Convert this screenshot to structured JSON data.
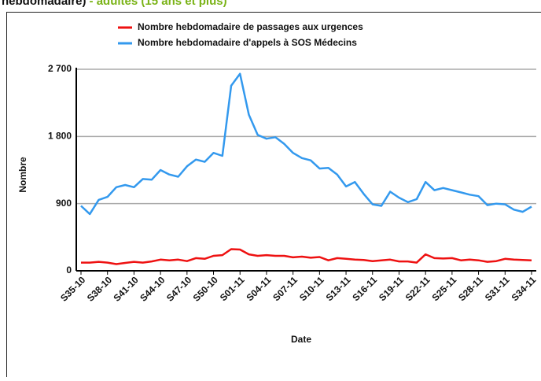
{
  "chart_data": {
    "type": "line",
    "title": "hebdomadaire)",
    "subtitle": "- adultes (15 ans et plus)",
    "x_label": "Date",
    "y_label": "Nombre",
    "categories": [
      "S35-10",
      null,
      null,
      "S38-10",
      null,
      null,
      "S41-10",
      null,
      null,
      "S44-10",
      null,
      null,
      "S47-10",
      null,
      null,
      "S50-10",
      null,
      null,
      "S01-11",
      null,
      null,
      "S04-11",
      null,
      null,
      "S07-11",
      null,
      null,
      "S10-11",
      null,
      null,
      "S13-11",
      null,
      null,
      "S16-11",
      null,
      null,
      "S19-11",
      null,
      null,
      "S22-11",
      null,
      null,
      "S25-11",
      null,
      null,
      "S28-11",
      null,
      null,
      "S31-11",
      null,
      null,
      "S34-11"
    ],
    "series": [
      {
        "name": "Nombre hebdomadaire de passages aux urgences",
        "color": "#ee1111",
        "values": [
          110,
          110,
          120,
          110,
          90,
          105,
          120,
          110,
          125,
          150,
          140,
          150,
          130,
          170,
          160,
          200,
          210,
          290,
          285,
          220,
          200,
          210,
          200,
          200,
          180,
          190,
          175,
          185,
          140,
          170,
          160,
          150,
          145,
          130,
          140,
          150,
          125,
          125,
          110,
          220,
          170,
          165,
          170,
          140,
          150,
          140,
          120,
          130,
          160,
          150,
          145,
          140
        ]
      },
      {
        "name": "Nombre hebdomadaire d'appels à SOS Médecins",
        "color": "#3399ee",
        "values": [
          870,
          760,
          950,
          990,
          1120,
          1150,
          1120,
          1230,
          1220,
          1350,
          1290,
          1260,
          1400,
          1490,
          1460,
          1580,
          1540,
          2480,
          2640,
          2090,
          1820,
          1770,
          1790,
          1700,
          1580,
          1510,
          1480,
          1370,
          1380,
          1290,
          1130,
          1190,
          1030,
          890,
          870,
          1060,
          980,
          920,
          960,
          1190,
          1080,
          1110,
          1080,
          1050,
          1020,
          1000,
          880,
          900,
          890,
          820,
          790,
          860
        ]
      }
    ],
    "ylim": [
      0,
      2700
    ],
    "yticks": [
      0,
      900,
      {
        "value": 1800,
        "label": "1 800"
      },
      {
        "value": 2700,
        "label": "2 700"
      }
    ],
    "grid": true
  }
}
